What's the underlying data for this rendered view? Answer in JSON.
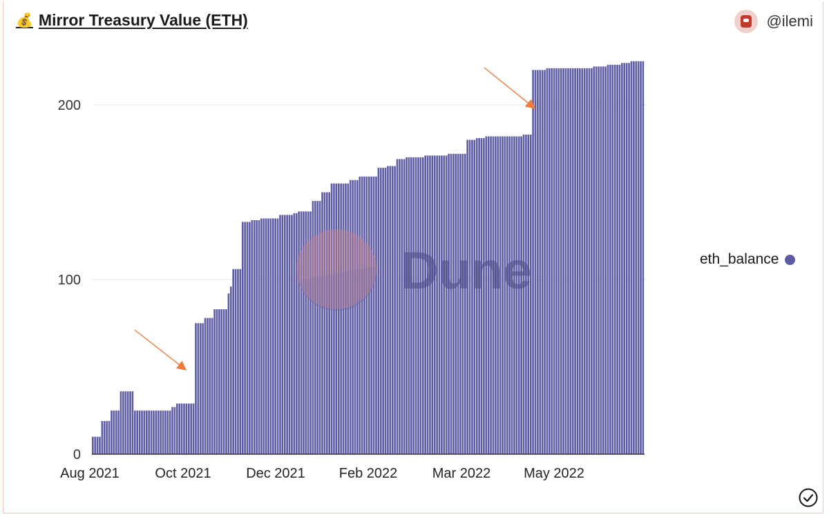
{
  "header": {
    "title": "Mirror Treasury Value (ETH)",
    "title_icon": "money-bag-icon",
    "user_handle": "@ilemi"
  },
  "watermark": {
    "text": "Dune"
  },
  "colors": {
    "bar": "#5c5ba3",
    "arrow": "#ef7c3a",
    "grid": "#e8e8e8"
  },
  "chart_data": {
    "type": "bar",
    "title": "Mirror Treasury Value (ETH)",
    "xlabel": "",
    "ylabel": "",
    "series": [
      {
        "name": "eth_balance",
        "color": "#5c5ba3"
      }
    ],
    "x_tick_labels": [
      "Aug 2021",
      "Oct 2021",
      "Dec 2021",
      "Feb 2022",
      "Mar 2022",
      "May 2022"
    ],
    "y_ticks": [
      0,
      100,
      200
    ],
    "ylim": [
      0,
      230
    ],
    "grid": true,
    "legend_position": "right",
    "steps": [
      {
        "bars": 4,
        "value": 10
      },
      {
        "bars": 4,
        "value": 19
      },
      {
        "bars": 4,
        "value": 25
      },
      {
        "bars": 6,
        "value": 36
      },
      {
        "bars": 16,
        "value": 25
      },
      {
        "bars": 2,
        "value": 27
      },
      {
        "bars": 8,
        "value": 29
      },
      {
        "bars": 4,
        "value": 75
      },
      {
        "bars": 4,
        "value": 78
      },
      {
        "bars": 6,
        "value": 83
      },
      {
        "bars": 1,
        "value": 92
      },
      {
        "bars": 1,
        "value": 96
      },
      {
        "bars": 4,
        "value": 106
      },
      {
        "bars": 4,
        "value": 133
      },
      {
        "bars": 4,
        "value": 134
      },
      {
        "bars": 8,
        "value": 135
      },
      {
        "bars": 6,
        "value": 137
      },
      {
        "bars": 2,
        "value": 138
      },
      {
        "bars": 6,
        "value": 139
      },
      {
        "bars": 4,
        "value": 145
      },
      {
        "bars": 4,
        "value": 150
      },
      {
        "bars": 8,
        "value": 155
      },
      {
        "bars": 4,
        "value": 157
      },
      {
        "bars": 8,
        "value": 159
      },
      {
        "bars": 4,
        "value": 164
      },
      {
        "bars": 4,
        "value": 165
      },
      {
        "bars": 4,
        "value": 169
      },
      {
        "bars": 8,
        "value": 170
      },
      {
        "bars": 10,
        "value": 171
      },
      {
        "bars": 8,
        "value": 172
      },
      {
        "bars": 4,
        "value": 180
      },
      {
        "bars": 4,
        "value": 181
      },
      {
        "bars": 16,
        "value": 182
      },
      {
        "bars": 4,
        "value": 183
      },
      {
        "bars": 6,
        "value": 220
      },
      {
        "bars": 20,
        "value": 221
      },
      {
        "bars": 6,
        "value": 222
      },
      {
        "bars": 6,
        "value": 223
      },
      {
        "bars": 4,
        "value": 224
      },
      {
        "bars": 6,
        "value": 225
      }
    ]
  }
}
